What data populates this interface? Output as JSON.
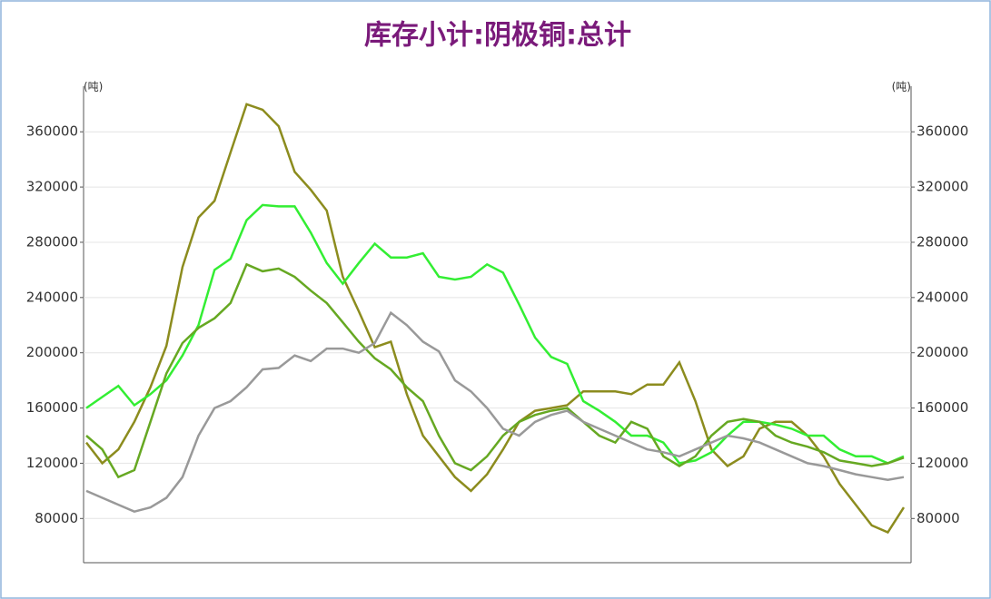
{
  "chart_data": {
    "type": "line",
    "title": "库存小计:阴极铜:总计",
    "y_label": "(吨)",
    "ylim": [
      48000,
      393000
    ],
    "yticks": [
      80000,
      120000,
      160000,
      200000,
      240000,
      280000,
      320000,
      360000
    ],
    "grid": true,
    "series": [
      {
        "name": "series-1",
        "color": "#8c8c1e",
        "values": [
          135000,
          120000,
          130000,
          150000,
          175000,
          205000,
          262000,
          298000,
          310000,
          345000,
          380000,
          376000,
          364000,
          331000,
          318000,
          303000,
          255000,
          230000,
          204000,
          208000,
          170000,
          140000,
          125000,
          110000,
          100000,
          112000,
          130000,
          150000,
          158000,
          160000,
          162000,
          172000,
          172000,
          172000,
          170000,
          177000,
          177000,
          193000,
          165000,
          130000,
          118000,
          125000,
          145000,
          150000,
          150000,
          140000,
          125000,
          105000,
          90000,
          75000,
          70000,
          88000
        ]
      },
      {
        "name": "series-2",
        "color": "#33ee33",
        "values": [
          160000,
          168000,
          176000,
          162000,
          170000,
          180000,
          198000,
          220000,
          260000,
          268000,
          296000,
          307000,
          306000,
          306000,
          287000,
          265000,
          250000,
          265000,
          279000,
          269000,
          269000,
          272000,
          255000,
          253000,
          255000,
          264000,
          258000,
          235000,
          211000,
          197000,
          192000,
          165000,
          158000,
          150000,
          140000,
          140000,
          135000,
          120000,
          122000,
          128000,
          140000,
          150000,
          150000,
          148000,
          145000,
          140000,
          140000,
          130000,
          125000,
          125000,
          120000,
          125000
        ]
      },
      {
        "name": "series-3",
        "color": "#66a822",
        "values": [
          140000,
          130000,
          110000,
          115000,
          150000,
          185000,
          207000,
          218000,
          225000,
          236000,
          264000,
          259000,
          261000,
          255000,
          245000,
          236000,
          222000,
          208000,
          196000,
          188000,
          175000,
          165000,
          140000,
          120000,
          115000,
          125000,
          140000,
          150000,
          155000,
          158000,
          160000,
          150000,
          140000,
          135000,
          150000,
          145000,
          125000,
          118000,
          125000,
          140000,
          150000,
          152000,
          150000,
          140000,
          135000,
          132000,
          128000,
          122000,
          120000,
          118000,
          120000,
          124000
        ]
      },
      {
        "name": "series-4",
        "color": "#999999",
        "values": [
          100000,
          95000,
          90000,
          85000,
          88000,
          95000,
          110000,
          140000,
          160000,
          165000,
          175000,
          188000,
          189000,
          198000,
          194000,
          203000,
          203000,
          200000,
          207000,
          229000,
          220000,
          208000,
          201000,
          180000,
          172000,
          160000,
          145000,
          140000,
          150000,
          155000,
          158000,
          150000,
          145000,
          140000,
          135000,
          130000,
          128000,
          125000,
          130000,
          135000,
          140000,
          138000,
          135000,
          130000,
          125000,
          120000,
          118000,
          115000,
          112000,
          110000,
          108000,
          110000
        ]
      }
    ]
  }
}
